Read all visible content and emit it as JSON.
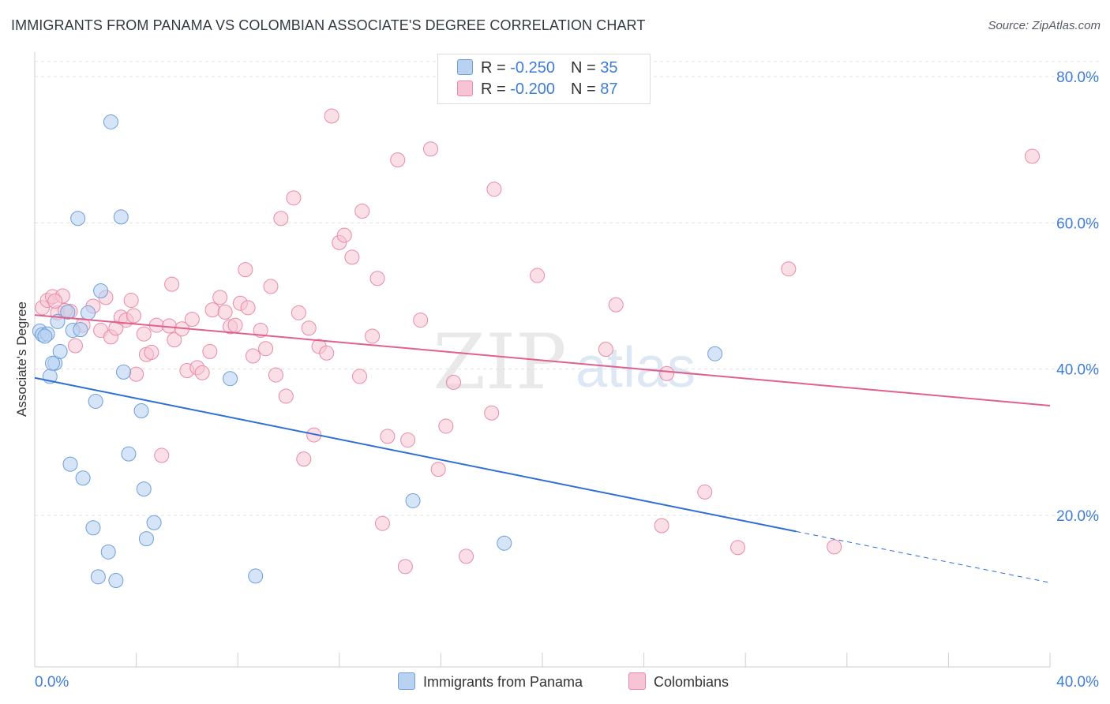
{
  "title": "IMMIGRANTS FROM PANAMA VS COLOMBIAN ASSOCIATE'S DEGREE CORRELATION CHART",
  "source": "Source: ZipAtlas.com",
  "watermark": {
    "zip": "ZIP",
    "atlas": "atlas"
  },
  "colors": {
    "blue_fill": "#b9d2f2",
    "blue_stroke": "#6f9fd8",
    "blue_line": "#2f6fd4",
    "pink_fill": "#f6c4d4",
    "pink_stroke": "#e98aa8",
    "pink_line": "#e0608e",
    "axis_text": "#3f7dd6",
    "grid": "#e3e3e3"
  },
  "legend": {
    "rows": [
      {
        "r_label": "R = ",
        "r_value": "-0.250",
        "n_label": "N = ",
        "n_value": "35"
      },
      {
        "r_label": "R = ",
        "r_value": "-0.200",
        "n_label": "N = ",
        "n_value": "87"
      }
    ]
  },
  "bottom_legend": {
    "series1": "Immigrants from Panama",
    "series2": "Colombians"
  },
  "chart_data": {
    "type": "scatter",
    "title": "IMMIGRANTS FROM PANAMA VS COLOMBIAN ASSOCIATE'S DEGREE CORRELATION CHART",
    "xlabel": "",
    "ylabel": "Associate's Degree",
    "xlim": [
      0,
      40
    ],
    "ylim": [
      0,
      85
    ],
    "x_tick_labels": [
      "0.0%",
      "40.0%"
    ],
    "y_ticks": [
      20,
      40,
      60,
      80
    ],
    "y_tick_labels": [
      "20.0%",
      "40.0%",
      "60.0%",
      "80.0%"
    ],
    "grid": true,
    "legend_position": "top-center",
    "series": [
      {
        "name": "Immigrants from Panama",
        "color": "#6f9fd8",
        "r": -0.25,
        "n": 35,
        "trend": {
          "x0": 0,
          "y0": 38.8,
          "x1": 30,
          "y1": 17.8,
          "dash_to_x": 40,
          "dash_to_y": 10.8
        },
        "points": [
          [
            0.2,
            45.2
          ],
          [
            0.3,
            44.7
          ],
          [
            0.5,
            44.8
          ],
          [
            0.6,
            39.0
          ],
          [
            0.8,
            40.8
          ],
          [
            0.7,
            40.8
          ],
          [
            0.9,
            46.5
          ],
          [
            1.0,
            42.4
          ],
          [
            1.5,
            45.3
          ],
          [
            1.3,
            47.8
          ],
          [
            1.8,
            45.4
          ],
          [
            2.1,
            47.7
          ],
          [
            2.6,
            50.7
          ],
          [
            1.7,
            60.6
          ],
          [
            3.4,
            60.8
          ],
          [
            3.0,
            73.8
          ],
          [
            3.5,
            39.6
          ],
          [
            2.4,
            35.6
          ],
          [
            4.2,
            34.3
          ],
          [
            1.4,
            27.0
          ],
          [
            1.9,
            25.1
          ],
          [
            3.7,
            28.4
          ],
          [
            4.3,
            23.6
          ],
          [
            2.3,
            18.3
          ],
          [
            2.9,
            15.0
          ],
          [
            2.5,
            11.6
          ],
          [
            3.2,
            11.1
          ],
          [
            4.7,
            19.0
          ],
          [
            4.4,
            16.8
          ],
          [
            7.7,
            38.7
          ],
          [
            8.7,
            11.7
          ],
          [
            14.9,
            22.0
          ],
          [
            18.5,
            16.2
          ],
          [
            26.8,
            42.1
          ],
          [
            0.4,
            44.5
          ]
        ]
      },
      {
        "name": "Colombians",
        "color": "#e98aa8",
        "r": -0.2,
        "n": 87,
        "trend": {
          "x0": 0,
          "y0": 47.4,
          "x1": 40,
          "y1": 35.0
        },
        "points": [
          [
            0.3,
            48.4
          ],
          [
            0.5,
            49.4
          ],
          [
            0.7,
            49.9
          ],
          [
            1.1,
            50.0
          ],
          [
            0.9,
            47.7
          ],
          [
            1.4,
            47.9
          ],
          [
            1.6,
            43.2
          ],
          [
            1.9,
            46.0
          ],
          [
            2.3,
            48.6
          ],
          [
            2.8,
            49.8
          ],
          [
            2.6,
            45.3
          ],
          [
            3.0,
            44.4
          ],
          [
            3.2,
            45.6
          ],
          [
            3.4,
            47.1
          ],
          [
            3.6,
            46.7
          ],
          [
            3.8,
            49.4
          ],
          [
            3.9,
            47.3
          ],
          [
            4.0,
            39.3
          ],
          [
            4.3,
            44.8
          ],
          [
            4.4,
            42.0
          ],
          [
            4.6,
            42.3
          ],
          [
            4.8,
            46.0
          ],
          [
            5.0,
            28.2
          ],
          [
            5.3,
            45.9
          ],
          [
            5.4,
            51.6
          ],
          [
            5.5,
            44.0
          ],
          [
            5.8,
            45.5
          ],
          [
            6.0,
            39.8
          ],
          [
            6.2,
            46.8
          ],
          [
            6.4,
            40.2
          ],
          [
            6.6,
            39.5
          ],
          [
            6.9,
            42.4
          ],
          [
            7.0,
            48.1
          ],
          [
            7.3,
            49.8
          ],
          [
            7.5,
            47.8
          ],
          [
            7.7,
            45.8
          ],
          [
            7.9,
            46.0
          ],
          [
            8.1,
            49.0
          ],
          [
            8.3,
            53.6
          ],
          [
            8.4,
            48.4
          ],
          [
            8.6,
            41.8
          ],
          [
            8.9,
            45.3
          ],
          [
            9.1,
            42.8
          ],
          [
            9.3,
            51.3
          ],
          [
            9.5,
            39.2
          ],
          [
            9.7,
            60.6
          ],
          [
            9.9,
            36.3
          ],
          [
            10.2,
            63.4
          ],
          [
            10.4,
            47.7
          ],
          [
            10.6,
            27.7
          ],
          [
            10.8,
            45.6
          ],
          [
            11.0,
            31.0
          ],
          [
            11.2,
            43.1
          ],
          [
            11.5,
            42.2
          ],
          [
            11.7,
            74.6
          ],
          [
            12.0,
            57.3
          ],
          [
            12.2,
            58.3
          ],
          [
            12.5,
            55.3
          ],
          [
            12.8,
            39.0
          ],
          [
            12.9,
            61.6
          ],
          [
            13.3,
            44.5
          ],
          [
            13.5,
            52.4
          ],
          [
            13.7,
            18.9
          ],
          [
            13.9,
            30.8
          ],
          [
            14.3,
            68.6
          ],
          [
            14.7,
            30.3
          ],
          [
            14.6,
            13.0
          ],
          [
            15.2,
            46.7
          ],
          [
            15.6,
            70.1
          ],
          [
            15.9,
            26.3
          ],
          [
            16.2,
            32.2
          ],
          [
            16.5,
            38.2
          ],
          [
            17.0,
            14.4
          ],
          [
            18.1,
            64.6
          ],
          [
            18.0,
            34.0
          ],
          [
            19.8,
            52.8
          ],
          [
            22.5,
            42.7
          ],
          [
            22.9,
            48.8
          ],
          [
            24.7,
            18.6
          ],
          [
            24.9,
            39.4
          ],
          [
            26.4,
            23.2
          ],
          [
            27.7,
            15.6
          ],
          [
            29.7,
            53.7
          ],
          [
            31.5,
            15.7
          ],
          [
            39.3,
            69.1
          ],
          [
            1.2,
            48.0
          ],
          [
            0.8,
            49.3
          ]
        ]
      }
    ]
  }
}
